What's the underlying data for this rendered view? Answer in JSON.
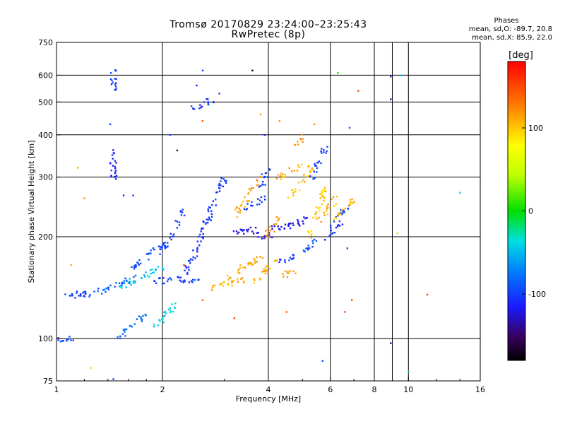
{
  "header": {
    "line1": "Tromsø 20170829 23:24:00–23:25:43",
    "line2": "RwPretec (8p)"
  },
  "phases": {
    "title": "Phases",
    "line1": "mean, sd,O: -89.7, 20.8",
    "line2": "mean, sd,X: 85.9, 22.0"
  },
  "chart_data": {
    "type": "scatter",
    "xlabel": "Frequency [MHz]",
    "ylabel": "Stationary phase Virtual Height [km]",
    "x_scale": "log",
    "y_scale": "log",
    "xlim": [
      1,
      16
    ],
    "ylim": [
      75,
      750
    ],
    "x_ticks": [
      1,
      2,
      4,
      6,
      8,
      10,
      16
    ],
    "y_ticks": [
      75,
      100,
      200,
      300,
      400,
      500,
      600,
      750
    ],
    "grid": true,
    "colorbar": {
      "label": "[deg]",
      "range": [
        -180,
        180
      ],
      "ticks": [
        100,
        0,
        -100
      ]
    },
    "traces": [
      {
        "x": [
          1.0,
          1.12
        ],
        "y": [
          100,
          100
        ],
        "phase": -95
      },
      {
        "x": [
          1.05,
          1.3
        ],
        "y": [
          135,
          135
        ],
        "phase": -100
      },
      {
        "x": [
          1.3,
          1.7
        ],
        "y": [
          137,
          152
        ],
        "phase": -90
      },
      {
        "x": [
          1.5,
          2.0
        ],
        "y": [
          142,
          162
        ],
        "phase": -45
      },
      {
        "x": [
          1.5,
          1.8
        ],
        "y": [
          100,
          118
        ],
        "phase": -80
      },
      {
        "x": [
          1.9,
          2.2
        ],
        "y": [
          108,
          128
        ],
        "phase": -40
      },
      {
        "x": [
          1.6,
          2.0
        ],
        "y": [
          160,
          190
        ],
        "phase": -95
      },
      {
        "x": [
          1.9,
          2.6
        ],
        "y": [
          148,
          150
        ],
        "phase": -98
      },
      {
        "x": [
          2.0,
          2.3
        ],
        "y": [
          180,
          240
        ],
        "phase": -100
      },
      {
        "x": [
          2.3,
          3.0
        ],
        "y": [
          150,
          300
        ],
        "phase": -105
      },
      {
        "x": [
          2.4,
          2.8
        ],
        "y": [
          470,
          510
        ],
        "phase": -105
      },
      {
        "x": [
          2.7,
          3.4
        ],
        "y": [
          140,
          150
        ],
        "phase": 110
      },
      {
        "x": [
          3.0,
          3.8
        ],
        "y": [
          150,
          175
        ],
        "phase": 110
      },
      {
        "x": [
          3.1,
          3.8
        ],
        "y": [
          205,
          210
        ],
        "phase": -125
      },
      {
        "x": [
          3.2,
          3.8
        ],
        "y": [
          230,
          300
        ],
        "phase": 115
      },
      {
        "x": [
          3.4,
          3.9
        ],
        "y": [
          240,
          260
        ],
        "phase": -100
      },
      {
        "x": [
          3.6,
          4.2
        ],
        "y": [
          145,
          170
        ],
        "phase": 110
      },
      {
        "x": [
          3.8,
          4.2
        ],
        "y": [
          200,
          205
        ],
        "phase": -125
      },
      {
        "x": [
          3.8,
          4.0
        ],
        "y": [
          280,
          320
        ],
        "phase": -100
      },
      {
        "x": [
          3.9,
          4.3
        ],
        "y": [
          200,
          225
        ],
        "phase": 115
      },
      {
        "x": [
          4.0,
          4.6
        ],
        "y": [
          210,
          215
        ],
        "phase": -120
      },
      {
        "x": [
          4.2,
          4.8
        ],
        "y": [
          170,
          175
        ],
        "phase": -100
      },
      {
        "x": [
          4.3,
          4.8
        ],
        "y": [
          150,
          160
        ],
        "phase": 110
      },
      {
        "x": [
          4.3,
          5.0
        ],
        "y": [
          300,
          330
        ],
        "phase": 110
      },
      {
        "x": [
          4.5,
          5.2
        ],
        "y": [
          215,
          225
        ],
        "phase": -125
      },
      {
        "x": [
          4.6,
          5.3
        ],
        "y": [
          260,
          320
        ],
        "phase": 105
      },
      {
        "x": [
          4.8,
          5.1
        ],
        "y": [
          380,
          400
        ],
        "phase": 120
      },
      {
        "x": [
          5.0,
          5.5
        ],
        "y": [
          180,
          200
        ],
        "phase": -95
      },
      {
        "x": [
          5.2,
          5.8
        ],
        "y": [
          200,
          280
        ],
        "phase": 100
      },
      {
        "x": [
          5.3,
          5.8
        ],
        "y": [
          300,
          370
        ],
        "phase": -100
      },
      {
        "x": [
          5.6,
          6.2
        ],
        "y": [
          225,
          260
        ],
        "phase": 110
      },
      {
        "x": [
          5.8,
          6.4
        ],
        "y": [
          200,
          220
        ],
        "phase": -110
      },
      {
        "x": [
          6.1,
          6.8
        ],
        "y": [
          220,
          250
        ],
        "phase": -95
      },
      {
        "x": [
          6.2,
          7.0
        ],
        "y": [
          225,
          260
        ],
        "phase": 105
      },
      {
        "x": [
          1.45,
          1.45
        ],
        "y": [
          290,
          370
        ],
        "phase": -110
      },
      {
        "x": [
          1.45,
          1.45
        ],
        "y": [
          530,
          630
        ],
        "phase": -100
      }
    ],
    "scatter_points": [
      {
        "x": 1.15,
        "y": 320,
        "phase": 110
      },
      {
        "x": 1.2,
        "y": 260,
        "phase": 120
      },
      {
        "x": 1.1,
        "y": 165,
        "phase": 110
      },
      {
        "x": 1.25,
        "y": 82,
        "phase": 40
      },
      {
        "x": 1.45,
        "y": 76,
        "phase": -100
      },
      {
        "x": 1.42,
        "y": 430,
        "phase": -100
      },
      {
        "x": 1.55,
        "y": 265,
        "phase": -110
      },
      {
        "x": 1.65,
        "y": 265,
        "phase": -100
      },
      {
        "x": 2.1,
        "y": 400,
        "phase": -100
      },
      {
        "x": 2.2,
        "y": 360,
        "phase": -150
      },
      {
        "x": 2.6,
        "y": 620,
        "phase": -100
      },
      {
        "x": 2.6,
        "y": 440,
        "phase": 140
      },
      {
        "x": 2.5,
        "y": 560,
        "phase": -110
      },
      {
        "x": 2.9,
        "y": 530,
        "phase": -100
      },
      {
        "x": 3.6,
        "y": 620,
        "phase": -200
      },
      {
        "x": 3.8,
        "y": 460,
        "phase": 120
      },
      {
        "x": 3.9,
        "y": 400,
        "phase": -120
      },
      {
        "x": 4.3,
        "y": 440,
        "phase": 120
      },
      {
        "x": 4.5,
        "y": 120,
        "phase": 140
      },
      {
        "x": 5.7,
        "y": 86,
        "phase": -100
      },
      {
        "x": 5.4,
        "y": 430,
        "phase": 120
      },
      {
        "x": 6.3,
        "y": 610,
        "phase": 10
      },
      {
        "x": 6.8,
        "y": 420,
        "phase": -90
      },
      {
        "x": 6.6,
        "y": 120,
        "phase": 150
      },
      {
        "x": 6.7,
        "y": 185,
        "phase": -95
      },
      {
        "x": 6.9,
        "y": 130,
        "phase": 150
      },
      {
        "x": 7.2,
        "y": 540,
        "phase": 150
      },
      {
        "x": 8.9,
        "y": 595,
        "phase": -120
      },
      {
        "x": 8.9,
        "y": 510,
        "phase": -130
      },
      {
        "x": 8.9,
        "y": 97,
        "phase": -140
      },
      {
        "x": 9.5,
        "y": 600,
        "phase": -50
      },
      {
        "x": 9.3,
        "y": 205,
        "phase": 40
      },
      {
        "x": 10.0,
        "y": 80,
        "phase": -20
      },
      {
        "x": 11.3,
        "y": 135,
        "phase": 150
      },
      {
        "x": 14.0,
        "y": 270,
        "phase": -40
      },
      {
        "x": 2.3,
        "y": 165,
        "phase": 160
      },
      {
        "x": 2.6,
        "y": 130,
        "phase": 140
      },
      {
        "x": 3.2,
        "y": 115,
        "phase": 150
      }
    ]
  }
}
